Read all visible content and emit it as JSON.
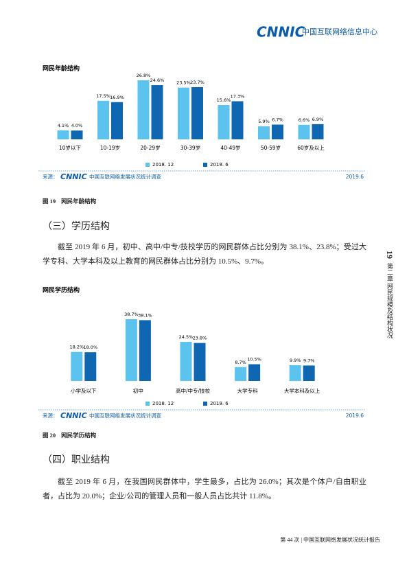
{
  "header": {
    "logo": "CNNIC",
    "org": "中国互联网络信息中心"
  },
  "chart_data": [
    {
      "type": "bar",
      "title": "网民年龄结构",
      "categories": [
        "10岁以下",
        "10-19岁",
        "20-29岁",
        "30-39岁",
        "40-49岁",
        "50-59岁",
        "60岁及以上"
      ],
      "series": [
        {
          "name": "2018. 12",
          "color": "#5cc3ee",
          "values": [
            4.1,
            17.5,
            26.8,
            23.5,
            15.6,
            5.9,
            6.6
          ],
          "value_labels": [
            "4.1%",
            "17.5%",
            "26.8%",
            "23.5%",
            "15.6%",
            "5.9%",
            "6.6%"
          ]
        },
        {
          "name": "2019. 6",
          "color": "#0f67b1",
          "values": [
            4.0,
            16.9,
            24.6,
            23.7,
            17.3,
            6.7,
            6.9
          ],
          "value_labels": [
            "4.0%",
            "16.9%",
            "24.6%",
            "23.7%",
            "17.3%",
            "6.7%",
            "6.9%"
          ]
        }
      ],
      "source": "来源：",
      "source_logo": "CNNIC",
      "source_name": "中国互联网络发展状况统计调查",
      "date": "2019.6"
    },
    {
      "type": "bar",
      "title": "网民学历结构",
      "categories": [
        "小学及以下",
        "初中",
        "高中/中专/技校",
        "大学专科",
        "大学本科及以上"
      ],
      "series": [
        {
          "name": "2018. 12",
          "color": "#5cc3ee",
          "values": [
            18.2,
            38.7,
            24.5,
            8.7,
            9.9
          ],
          "value_labels": [
            "18.2%",
            "38.7%",
            "24.5%",
            "8.7%",
            "9.9%"
          ]
        },
        {
          "name": "2019. 6",
          "color": "#0f67b1",
          "values": [
            18.0,
            38.1,
            23.8,
            10.5,
            9.7
          ],
          "value_labels": [
            "18.0%",
            "38.1%",
            "23.8%",
            "10.5%",
            "9.7%"
          ]
        }
      ],
      "source": "来源：",
      "source_logo": "CNNIC",
      "source_name": "中国互联网络发展状况统计调查",
      "date": "2019.6"
    }
  ],
  "captions": [
    {
      "number": "图 19",
      "text": "网民年龄结构"
    },
    {
      "number": "图 20",
      "text": "网民学历结构"
    }
  ],
  "sections": [
    {
      "heading": "（三）学历结构",
      "paragraph": "截至 2019 年 6 月，初中、高中/中专/技校学历的网民群体占比分别为 38.1%、23.8%；受过大学专科、大学本科及以上教育的网民群体占比分别为 10.5%、9.7%。"
    },
    {
      "heading": "（四）职业结构",
      "paragraph": "截至 2019 年 6 月，在我国网民群体中，学生最多，占比为 26.0%；其次是个体户/自由职业者，占比为 20.0%；企业/公司的管理人员和一般人员占比共计 11.8%。"
    }
  ],
  "side": {
    "page": "19",
    "chapter": "第二章 网民规模及结构状况"
  },
  "footer": "第 44 次 | 中国互联网络发展状况统计报告"
}
